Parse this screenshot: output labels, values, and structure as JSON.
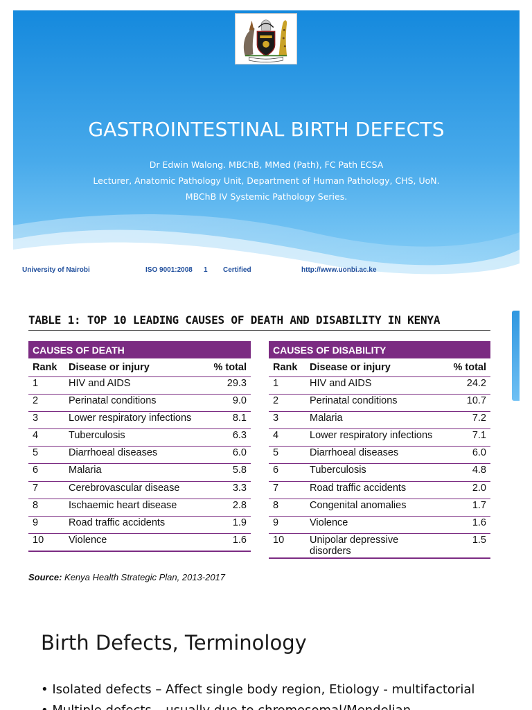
{
  "slide1": {
    "title": "GASTROINTESTINAL BIRTH DEFECTS",
    "subtitle_lines": [
      "Dr Edwin Walong. MBChB, MMed (Path), FC Path ECSA",
      "Lecturer, Anatomic Pathology Unit, Department of Human Pathology, CHS, UoN.",
      "MBChB IV Systemic Pathology Series."
    ],
    "crest_icon": "university-coat-of-arms-icon",
    "footer": {
      "university": "University of Nairobi",
      "iso": "ISO 9001:2008",
      "page": "1",
      "certified": "Certified",
      "url": "http://www.uonbi.ac.ke"
    },
    "colors": {
      "sky_top": "#1b8ee0",
      "sky_bottom": "#6cc3f5",
      "wave": "#ffffff",
      "footer_text": "#1f4e9c"
    }
  },
  "slide2": {
    "table_title": "TABLE 1: TOP 10 LEADING CAUSES OF DEATH AND DISABILITY IN KENYA",
    "band_color": "#7b2b82",
    "death": {
      "band": "CAUSES OF DEATH",
      "headers": [
        "Rank",
        "Disease or injury",
        "% total"
      ],
      "rows": [
        [
          "1",
          "HIV and AIDS",
          "29.3"
        ],
        [
          "2",
          "Perinatal conditions",
          "9.0"
        ],
        [
          "3",
          "Lower respiratory infections",
          "8.1"
        ],
        [
          "4",
          "Tuberculosis",
          "6.3"
        ],
        [
          "5",
          "Diarrhoeal diseases",
          "6.0"
        ],
        [
          "6",
          "Malaria",
          "5.8"
        ],
        [
          "7",
          "Cerebrovascular disease",
          "3.3"
        ],
        [
          "8",
          "Ischaemic heart disease",
          "2.8"
        ],
        [
          "9",
          "Road traffic accidents",
          "1.9"
        ],
        [
          "10",
          "Violence",
          "1.6"
        ]
      ]
    },
    "disability": {
      "band": "CAUSES OF DISABILITY",
      "headers": [
        "Rank",
        "Disease or injury",
        "% total"
      ],
      "rows": [
        [
          "1",
          "HIV and AIDS",
          "24.2"
        ],
        [
          "2",
          "Perinatal conditions",
          "10.7"
        ],
        [
          "3",
          "Malaria",
          "7.2"
        ],
        [
          "4",
          "Lower respiratory infections",
          "7.1"
        ],
        [
          "5",
          "Diarrhoeal diseases",
          "6.0"
        ],
        [
          "6",
          "Tuberculosis",
          "4.8"
        ],
        [
          "7",
          "Road traffic accidents",
          "2.0"
        ],
        [
          "8",
          "Congenital anomalies",
          "1.7"
        ],
        [
          "9",
          "Violence",
          "1.6"
        ],
        [
          "10",
          "Unipolar depressive disorders",
          "1.5"
        ]
      ]
    },
    "source_label": "Source:",
    "source_text": " Kenya Health Strategic Plan, 2013-2017"
  },
  "slide3": {
    "title": "Birth Defects, Terminology",
    "bullets": [
      "• Isolated defects – Affect single body region, Etiology - multifactorial",
      "• Multiple defects – usually due to chromosomal/Mendelian"
    ]
  }
}
